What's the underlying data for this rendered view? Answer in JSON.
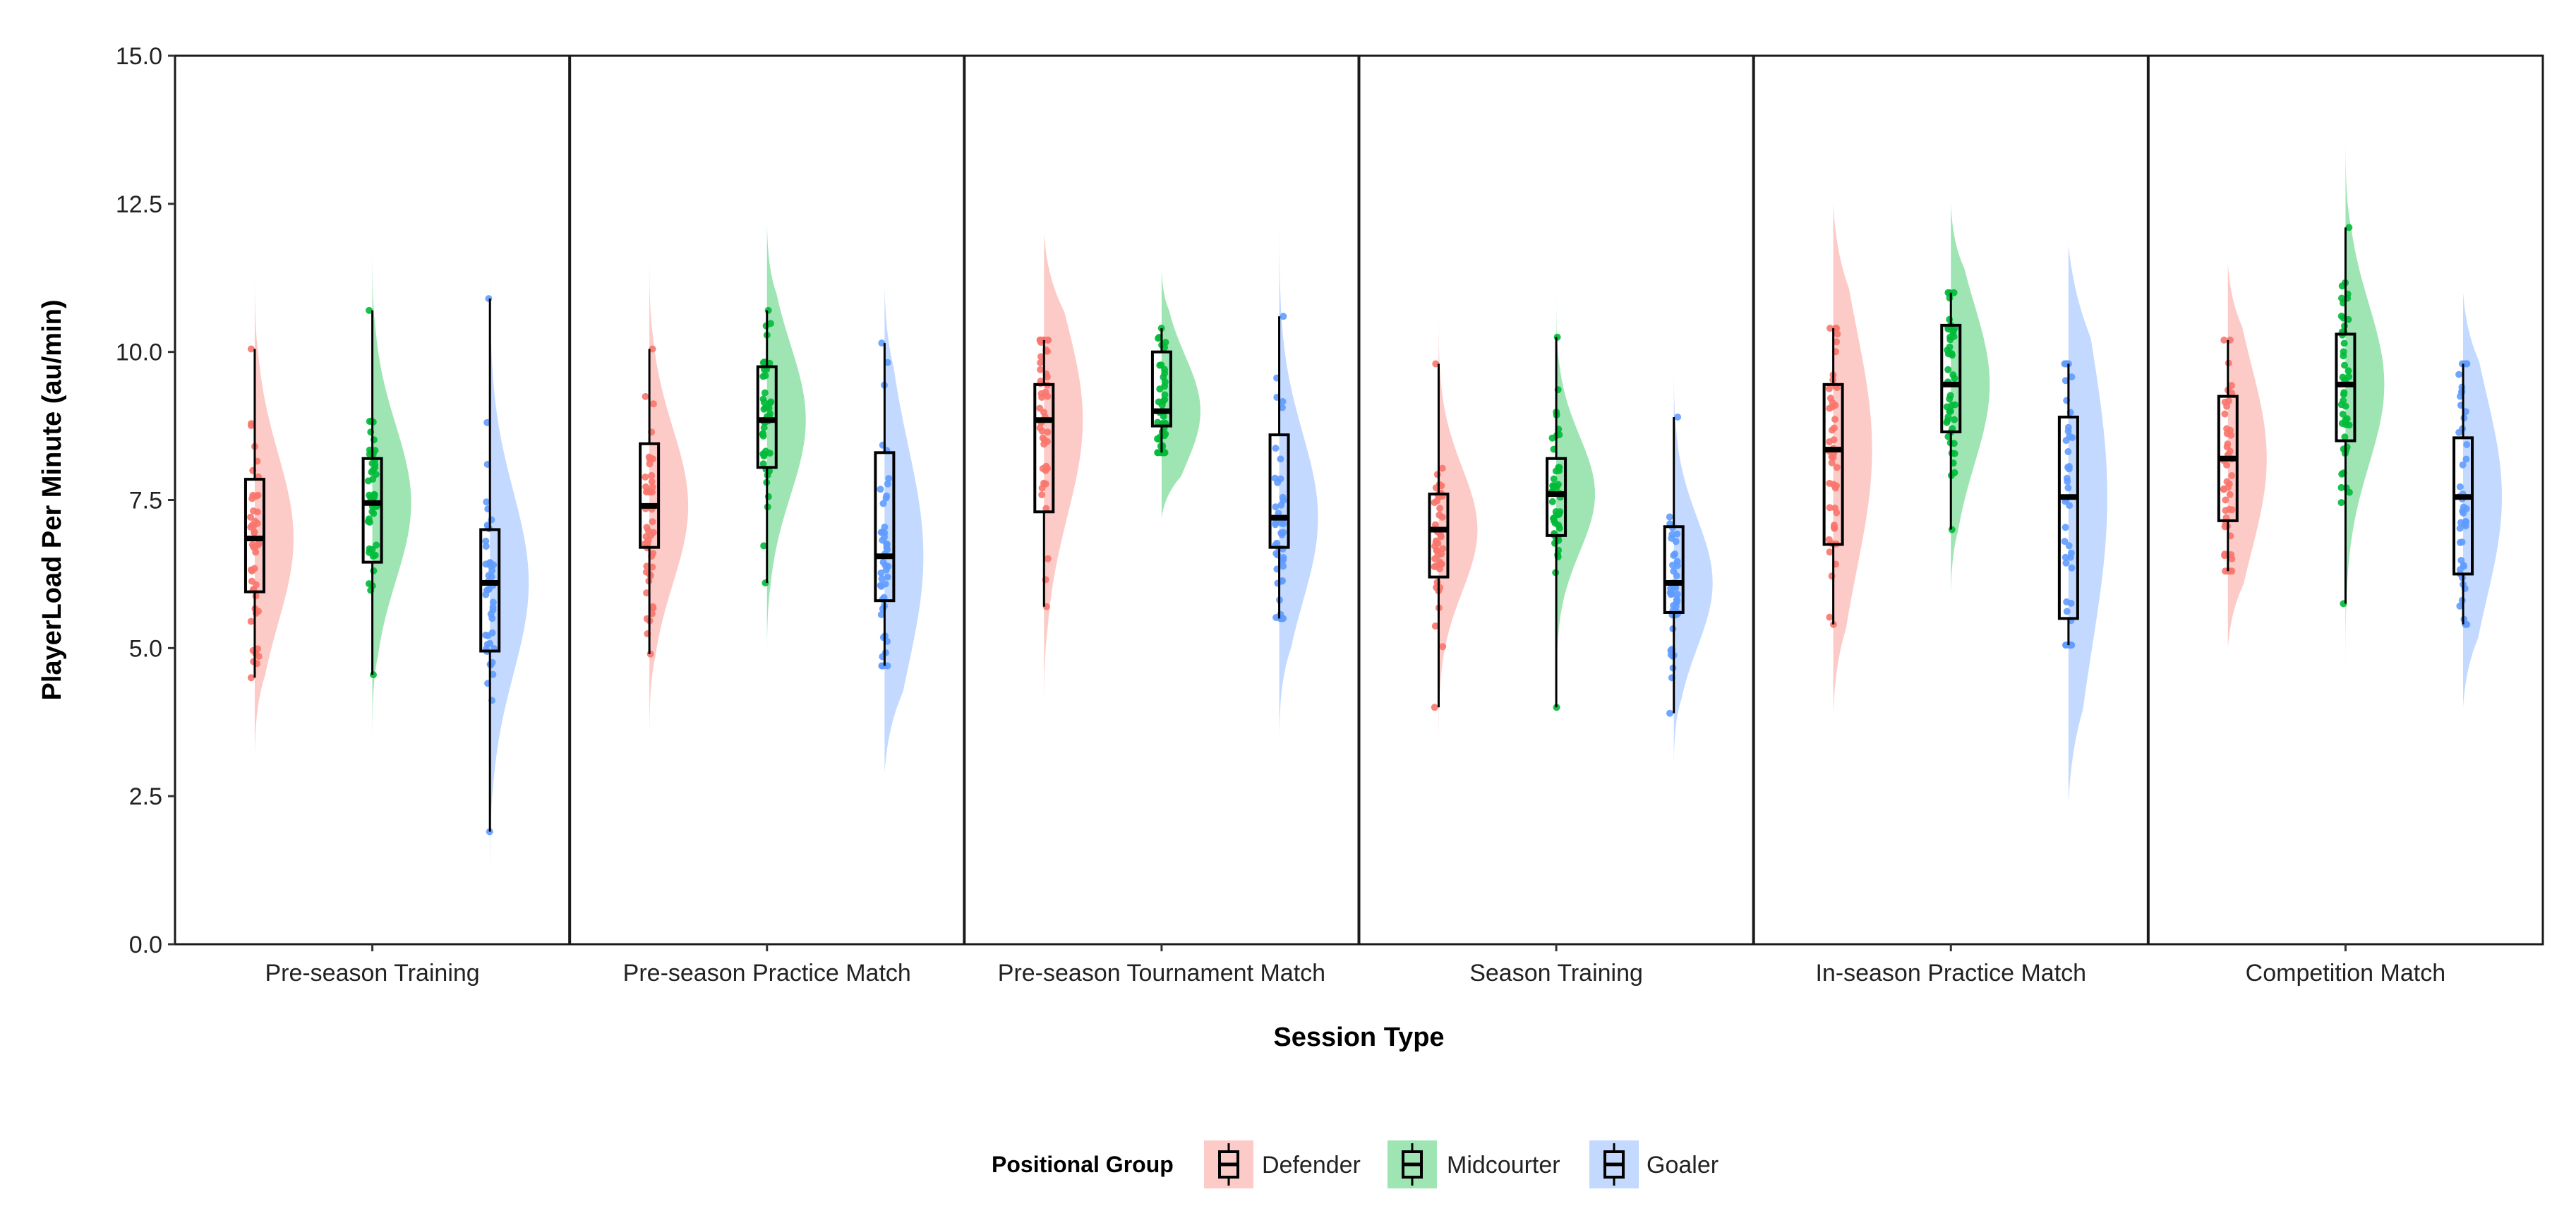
{
  "chart_data": {
    "type": "raincloud",
    "xlabel": "Session Type",
    "ylabel": "PlayerLoad Per Minute (au/min)",
    "ylim": [
      0,
      15
    ],
    "yticks": [
      "0.0",
      "2.5",
      "5.0",
      "7.5",
      "10.0",
      "12.5",
      "15.0"
    ],
    "grid": false,
    "legend": {
      "title": "Positional Group",
      "placement": "bottom",
      "items": [
        {
          "name": "Defender",
          "color": "#f8766d"
        },
        {
          "name": "Midcourter",
          "color": "#00ba38"
        },
        {
          "name": "Goaler",
          "color": "#619cff"
        }
      ]
    },
    "categories": [
      "Pre-season Training",
      "Pre-season Practice Match",
      "Pre-season Tournament Match",
      "Season Training",
      "In-season Practice Match",
      "Competition Match"
    ],
    "series": [
      {
        "name": "Defender",
        "color": "#f8766d",
        "box": [
          {
            "min": 4.5,
            "q1": 5.95,
            "median": 6.85,
            "q3": 7.85,
            "max": 10.05,
            "density_min": 3.2,
            "density_max": 11.3
          },
          {
            "min": 4.9,
            "q1": 6.7,
            "median": 7.4,
            "q3": 8.45,
            "max": 10.05,
            "density_min": 3.5,
            "density_max": 11.6
          },
          {
            "min": 5.7,
            "q1": 7.3,
            "median": 8.85,
            "q3": 9.45,
            "max": 10.2,
            "density_min": 4.0,
            "density_max": 12.0
          },
          {
            "min": 4.0,
            "q1": 6.2,
            "median": 7.0,
            "q3": 7.6,
            "max": 9.8,
            "density_min": 3.1,
            "density_max": 10.9
          },
          {
            "min": 5.4,
            "q1": 6.75,
            "median": 8.35,
            "q3": 9.45,
            "max": 10.4,
            "density_min": 3.9,
            "density_max": 12.5
          },
          {
            "min": 6.3,
            "q1": 7.15,
            "median": 8.2,
            "q3": 9.25,
            "max": 10.2,
            "density_min": 5.0,
            "density_max": 11.5
          }
        ]
      },
      {
        "name": "Midcourter",
        "color": "#00ba38",
        "box": [
          {
            "min": 4.55,
            "q1": 6.45,
            "median": 7.45,
            "q3": 8.2,
            "max": 10.7,
            "density_min": 3.5,
            "density_max": 11.8
          },
          {
            "min": 6.1,
            "q1": 8.05,
            "median": 8.85,
            "q3": 9.75,
            "max": 10.7,
            "density_min": 4.8,
            "density_max": 12.2
          },
          {
            "min": 8.3,
            "q1": 8.75,
            "median": 9.0,
            "q3": 10.0,
            "max": 10.4,
            "density_min": 7.2,
            "density_max": 11.4
          },
          {
            "min": 4.0,
            "q1": 6.9,
            "median": 7.6,
            "q3": 8.2,
            "max": 10.25,
            "density_min": 3.2,
            "density_max": 11.1
          },
          {
            "min": 7.0,
            "q1": 8.65,
            "median": 9.45,
            "q3": 10.45,
            "max": 11.0,
            "density_min": 5.9,
            "density_max": 12.5
          },
          {
            "min": 5.75,
            "q1": 8.5,
            "median": 9.45,
            "q3": 10.3,
            "max": 12.1,
            "density_min": 4.4,
            "density_max": 13.6
          }
        ]
      },
      {
        "name": "Goaler",
        "color": "#619cff",
        "box": [
          {
            "min": 1.9,
            "q1": 4.95,
            "median": 6.1,
            "q3": 7.0,
            "max": 10.9,
            "density_min": 0.8,
            "density_max": 12.1
          },
          {
            "min": 4.7,
            "q1": 5.8,
            "median": 6.55,
            "q3": 8.3,
            "max": 10.15,
            "density_min": 2.9,
            "density_max": 11.1
          },
          {
            "min": 5.5,
            "q1": 6.7,
            "median": 7.2,
            "q3": 8.6,
            "max": 10.6,
            "density_min": 3.5,
            "density_max": 12.5
          },
          {
            "min": 3.9,
            "q1": 5.6,
            "median": 6.1,
            "q3": 7.05,
            "max": 8.9,
            "density_min": 3.0,
            "density_max": 9.9
          },
          {
            "min": 5.05,
            "q1": 5.5,
            "median": 7.55,
            "q3": 8.9,
            "max": 9.8,
            "density_min": 2.4,
            "density_max": 11.8
          },
          {
            "min": 5.4,
            "q1": 6.25,
            "median": 7.55,
            "q3": 8.55,
            "max": 9.8,
            "density_min": 4.0,
            "density_max": 11.0
          }
        ]
      }
    ]
  }
}
